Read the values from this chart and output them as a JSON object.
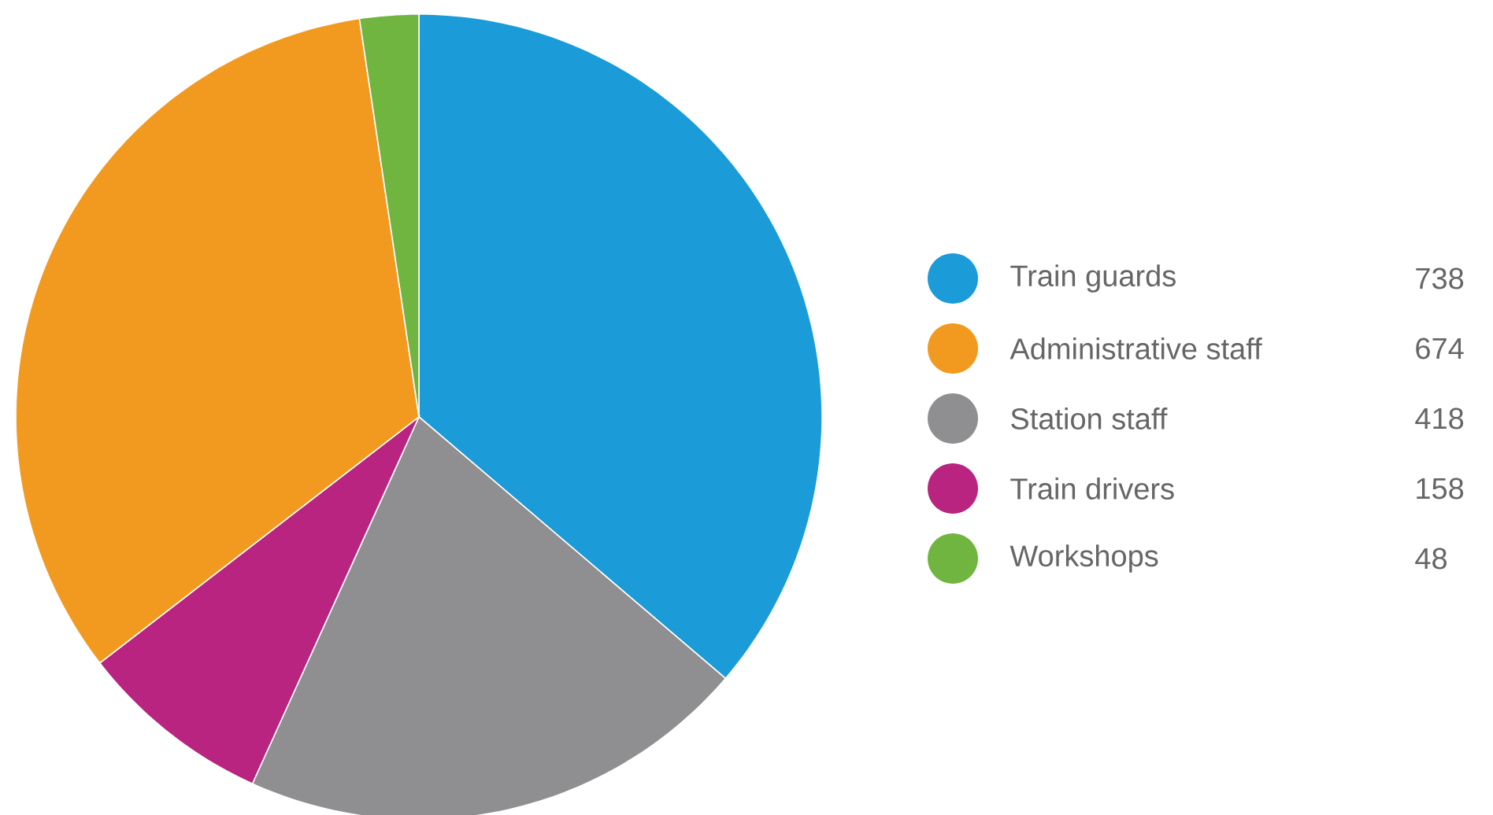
{
  "chart_data": {
    "type": "pie",
    "categories": [
      "Train guards",
      "Station staff",
      "Train drivers",
      "Administrative staff",
      "Workshops"
    ],
    "values": [
      738,
      418,
      158,
      674,
      48
    ],
    "colors": [
      "#1b9bd7",
      "#8f8f92",
      "#b8247f",
      "#f29a1f",
      "#71b541"
    ],
    "data_labels": true,
    "legend": "right"
  }
}
